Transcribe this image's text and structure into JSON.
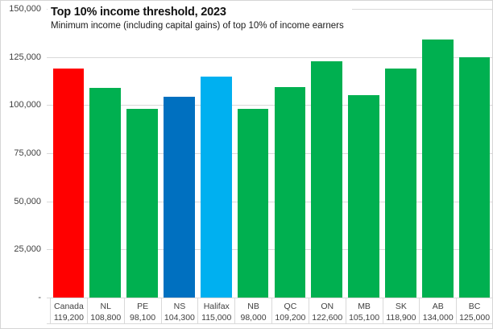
{
  "header": {
    "title": "Top 10% income threshold, 2023",
    "subtitle": "Minimum income (including capital gains) of top 10% of income earners"
  },
  "chart_data": {
    "type": "bar",
    "title": "Top 10% income threshold, 2023",
    "subtitle": "Minimum income (including capital gains) of top 10% of income earners",
    "xlabel": "",
    "ylabel": "",
    "ylim": [
      0,
      150000
    ],
    "grid": true,
    "legend": "none",
    "categories": [
      "Canada",
      "NL",
      "PE",
      "NS",
      "Halifax",
      "NB",
      "QC",
      "ON",
      "MB",
      "SK",
      "AB",
      "BC"
    ],
    "values": [
      119200,
      108800,
      98100,
      104300,
      115000,
      98000,
      109200,
      122600,
      105100,
      118900,
      134000,
      125000
    ],
    "value_labels": [
      "119,200",
      "108,800",
      "98,100",
      "104,300",
      "115,000",
      "98,000",
      "109,200",
      "122,600",
      "105,100",
      "118,900",
      "134,000",
      "125,000"
    ],
    "bar_colors": [
      "#ff0000",
      "#00b050",
      "#00b050",
      "#0070c0",
      "#00b0f0",
      "#00b050",
      "#00b050",
      "#00b050",
      "#00b050",
      "#00b050",
      "#00b050",
      "#00b050"
    ],
    "y_ticks": [
      {
        "value": 150000,
        "label": "150,000"
      },
      {
        "value": 125000,
        "label": "125,000"
      },
      {
        "value": 100000,
        "label": "100,000"
      },
      {
        "value": 75000,
        "label": "75,000"
      },
      {
        "value": 50000,
        "label": "50,000"
      },
      {
        "value": 25000,
        "label": "25,000"
      },
      {
        "value": 0,
        "label": "-"
      }
    ]
  },
  "colors": {
    "highlight_red": "#ff0000",
    "province_green": "#00b050",
    "ns_blue": "#0070c0",
    "halifax_light_blue": "#00b0f0",
    "gridline": "#d9d9d9",
    "axis_text": "#404040"
  }
}
